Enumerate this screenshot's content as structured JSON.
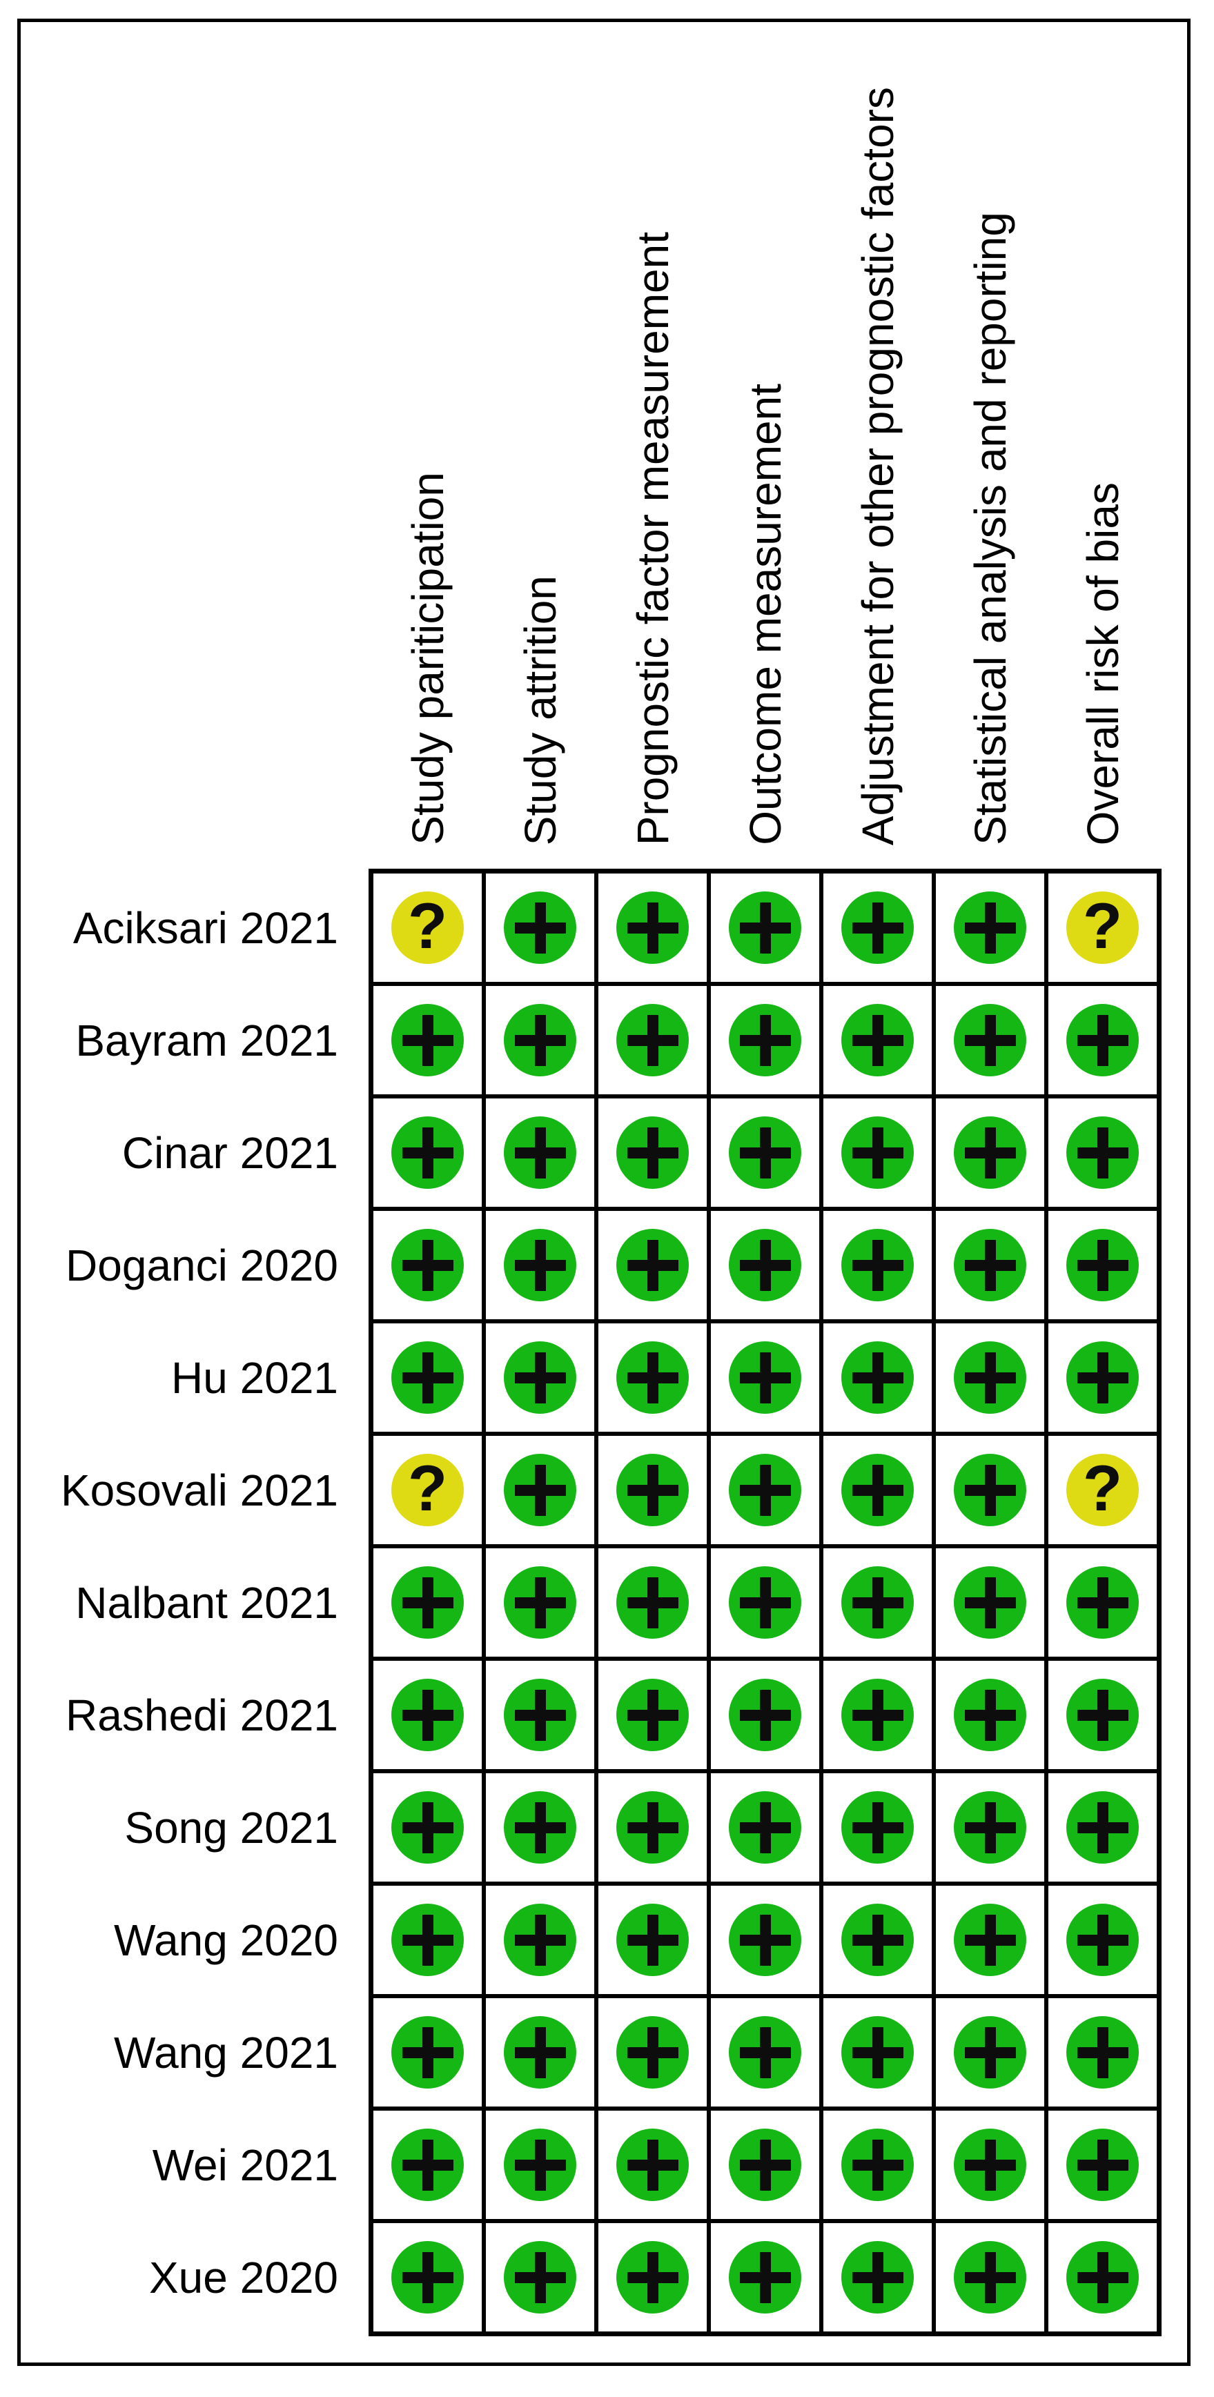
{
  "figure": {
    "description": "Risk of bias assessment (QUIPS) traffic light plot",
    "frame_color": "#000000",
    "grid_color": "#000000",
    "background": "#ffffff"
  },
  "chart_data": {
    "type": "heatmap",
    "title": "",
    "xlabel": "",
    "ylabel": "",
    "grid": true,
    "legend_position": "none",
    "x_categories": [
      "Study pariticipation",
      "Study attrition",
      "Prognostic factor measurement",
      "Outcome measurement",
      "Adjustment for other prognostic factors",
      "Statistical analysis and reporting",
      "Overall risk of bias"
    ],
    "y_categories": [
      "Aciksari 2021",
      "Bayram 2021",
      "Cinar 2021",
      "Doganci 2020",
      "Hu 2021",
      "Kosovali 2021",
      "Nalbant 2021",
      "Rashedi 2021",
      "Song 2021",
      "Wang 2020",
      "Wang 2021",
      "Wei 2021",
      "Xue 2020"
    ],
    "cell_symbols": [
      [
        "?",
        "+",
        "+",
        "+",
        "+",
        "+",
        "?"
      ],
      [
        "+",
        "+",
        "+",
        "+",
        "+",
        "+",
        "+"
      ],
      [
        "+",
        "+",
        "+",
        "+",
        "+",
        "+",
        "+"
      ],
      [
        "+",
        "+",
        "+",
        "+",
        "+",
        "+",
        "+"
      ],
      [
        "+",
        "+",
        "+",
        "+",
        "+",
        "+",
        "+"
      ],
      [
        "?",
        "+",
        "+",
        "+",
        "+",
        "+",
        "?"
      ],
      [
        "+",
        "+",
        "+",
        "+",
        "+",
        "+",
        "+"
      ],
      [
        "+",
        "+",
        "+",
        "+",
        "+",
        "+",
        "+"
      ],
      [
        "+",
        "+",
        "+",
        "+",
        "+",
        "+",
        "+"
      ],
      [
        "+",
        "+",
        "+",
        "+",
        "+",
        "+",
        "+"
      ],
      [
        "+",
        "+",
        "+",
        "+",
        "+",
        "+",
        "+"
      ],
      [
        "+",
        "+",
        "+",
        "+",
        "+",
        "+",
        "+"
      ],
      [
        "+",
        "+",
        "+",
        "+",
        "+",
        "+",
        "+"
      ]
    ],
    "symbol_meaning": {
      "+": "low risk of bias",
      "?": "unclear risk of bias"
    },
    "symbol_colors": {
      "+": "#15B715",
      "?": "#DEDB15"
    },
    "glyph_color": "#0d0d0d"
  }
}
